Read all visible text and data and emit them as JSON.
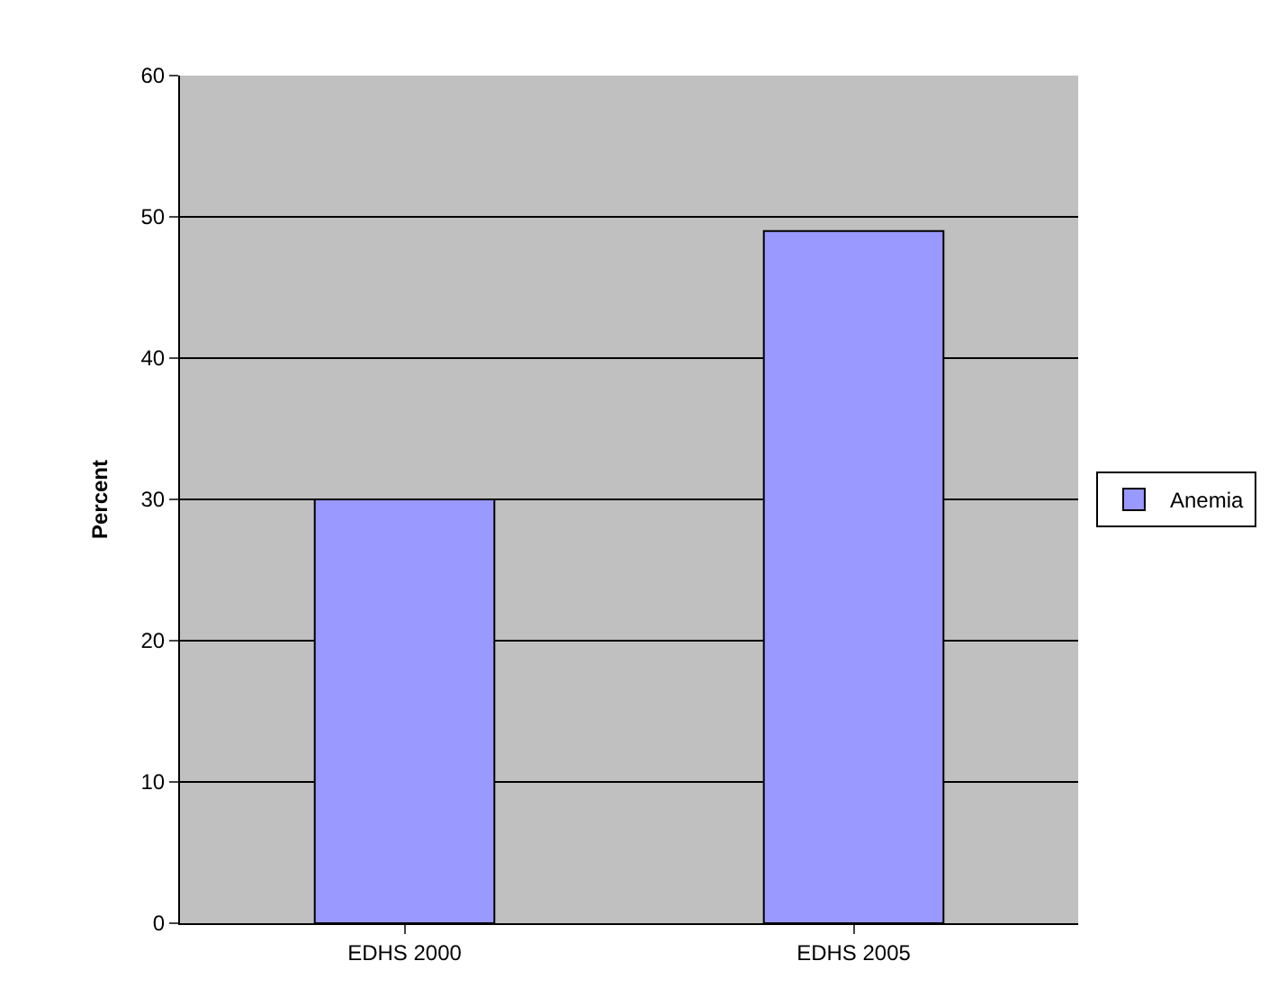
{
  "chart_data": {
    "type": "bar",
    "ylabel": "Percent",
    "categories": [
      "EDHS 2000",
      "EDHS 2005"
    ],
    "series": [
      {
        "name": "Anemia",
        "color": "#9999ff",
        "values": [
          30,
          49
        ]
      }
    ],
    "ylim": [
      0,
      60
    ],
    "yticks": [
      0,
      10,
      20,
      30,
      40,
      50,
      60
    ],
    "grid": "y",
    "legend": "right"
  }
}
